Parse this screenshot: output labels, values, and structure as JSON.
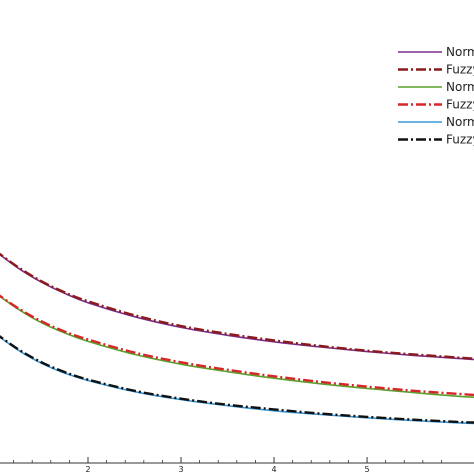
{
  "chart_data": {
    "type": "line",
    "title": "",
    "xlabel": "",
    "ylabel": "",
    "xlim": [
      1.0,
      6.15
    ],
    "ylim": [
      0.0,
      1.0
    ],
    "x_ticks": [
      2,
      3,
      4,
      5
    ],
    "x_tick_labels": [
      "2",
      "3",
      "4",
      "5"
    ],
    "grid": false,
    "legend_position": "top-right",
    "series": [
      {
        "name": "Norm",
        "color": "#7b2d8e",
        "dash": "solid",
        "x": [
          1.0,
          1.25,
          1.5,
          1.75,
          2.0,
          2.5,
          3.0,
          3.5,
          4.0,
          4.5,
          5.0,
          5.5,
          6.0,
          6.15
        ],
        "y": [
          0.455,
          0.418,
          0.388,
          0.364,
          0.344,
          0.314,
          0.291,
          0.274,
          0.26,
          0.249,
          0.239,
          0.231,
          0.224,
          0.222
        ]
      },
      {
        "name": "Fuzzy",
        "color": "#8b1a1a",
        "dash": "dashdot",
        "x": [
          1.0,
          1.25,
          1.5,
          1.75,
          2.0,
          2.5,
          3.0,
          3.5,
          4.0,
          4.5,
          5.0,
          5.5,
          6.0,
          6.15
        ],
        "y": [
          0.456,
          0.42,
          0.39,
          0.366,
          0.347,
          0.317,
          0.294,
          0.277,
          0.263,
          0.251,
          0.241,
          0.233,
          0.226,
          0.224
        ]
      },
      {
        "name": "Norm",
        "color": "#5aa02c",
        "dash": "solid",
        "x": [
          1.0,
          1.25,
          1.5,
          1.75,
          2.0,
          2.5,
          3.0,
          3.5,
          4.0,
          4.5,
          5.0,
          5.5,
          6.0,
          6.15
        ],
        "y": [
          0.365,
          0.33,
          0.301,
          0.279,
          0.261,
          0.233,
          0.212,
          0.196,
          0.182,
          0.17,
          0.16,
          0.151,
          0.143,
          0.141
        ]
      },
      {
        "name": "Fuzzy",
        "color": "#d62728",
        "dash": "dashdot",
        "x": [
          1.0,
          1.25,
          1.5,
          1.75,
          2.0,
          2.5,
          3.0,
          3.5,
          4.0,
          4.5,
          5.0,
          5.5,
          6.0,
          6.15
        ],
        "y": [
          0.366,
          0.332,
          0.304,
          0.282,
          0.265,
          0.237,
          0.216,
          0.2,
          0.186,
          0.174,
          0.164,
          0.155,
          0.148,
          0.146
        ]
      },
      {
        "name": "Norm",
        "color": "#3a9ad9",
        "dash": "solid",
        "x": [
          1.0,
          1.25,
          1.5,
          1.75,
          2.0,
          2.5,
          3.0,
          3.5,
          4.0,
          4.5,
          5.0,
          5.5,
          6.0,
          6.15
        ],
        "y": [
          0.278,
          0.242,
          0.214,
          0.193,
          0.177,
          0.153,
          0.136,
          0.123,
          0.112,
          0.104,
          0.097,
          0.091,
          0.086,
          0.085
        ]
      },
      {
        "name": "Fuzzy",
        "color": "#111111",
        "dash": "dashdot",
        "x": [
          1.0,
          1.25,
          1.5,
          1.75,
          2.0,
          2.5,
          3.0,
          3.5,
          4.0,
          4.5,
          5.0,
          5.5,
          6.0,
          6.15
        ],
        "y": [
          0.279,
          0.244,
          0.216,
          0.195,
          0.179,
          0.155,
          0.138,
          0.125,
          0.115,
          0.106,
          0.099,
          0.093,
          0.088,
          0.087
        ]
      }
    ]
  }
}
